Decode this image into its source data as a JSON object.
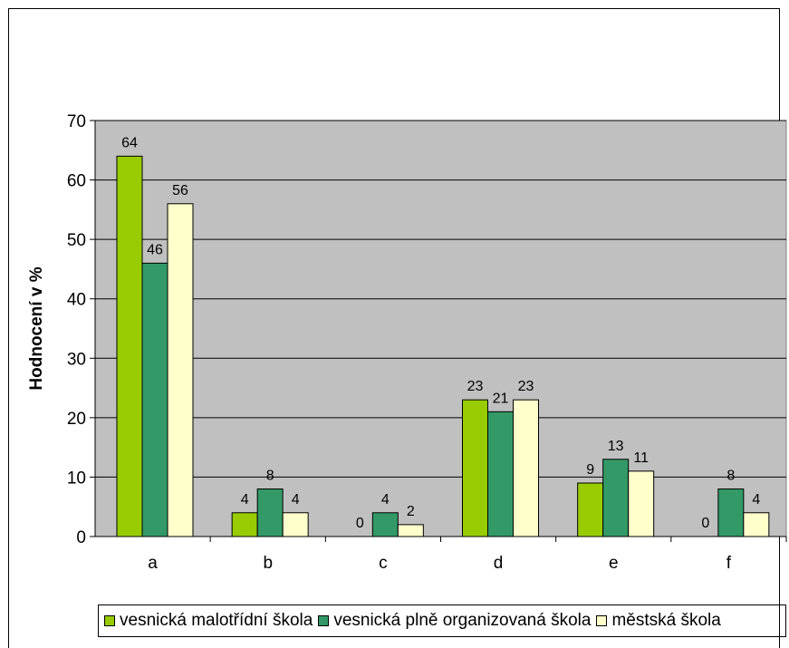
{
  "colors": {
    "plot_background": "#c0c0c0",
    "series": [
      "#99cc00",
      "#339966",
      "#ffffcc"
    ]
  },
  "chart_data": {
    "type": "bar",
    "title": "",
    "xlabel": "",
    "ylabel": "Hodnocení v %",
    "categories": [
      "a",
      "b",
      "c",
      "d",
      "e",
      "f"
    ],
    "series": [
      {
        "name": "vesnická malotřídní škola",
        "values": [
          64,
          4,
          0,
          23,
          9,
          0
        ]
      },
      {
        "name": "vesnická plně organizovaná škola",
        "values": [
          46,
          8,
          4,
          21,
          13,
          8
        ]
      },
      {
        "name": "městská škola",
        "values": [
          56,
          4,
          2,
          23,
          11,
          4
        ]
      }
    ],
    "ylim": [
      0,
      70
    ],
    "yticks": [
      0,
      10,
      20,
      30,
      40,
      50,
      60,
      70
    ],
    "data_labels": true,
    "grid": true,
    "legend": "bottom"
  }
}
